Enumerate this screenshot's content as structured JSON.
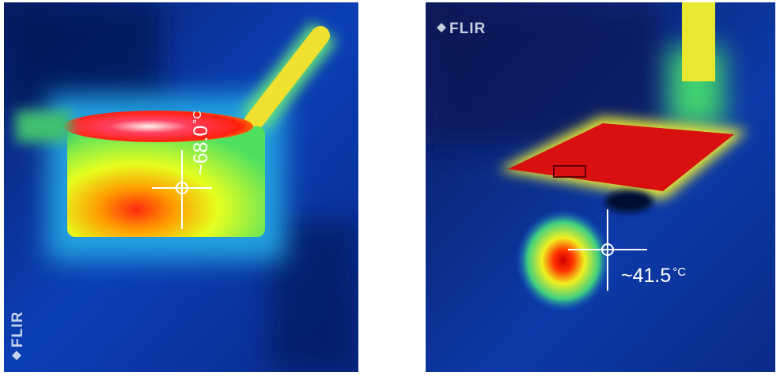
{
  "images": [
    {
      "reading": "~68.0",
      "unit": "°C",
      "logo": "FLIR"
    },
    {
      "reading": "~41.5",
      "unit": "°C",
      "logo": "FLIR"
    }
  ]
}
